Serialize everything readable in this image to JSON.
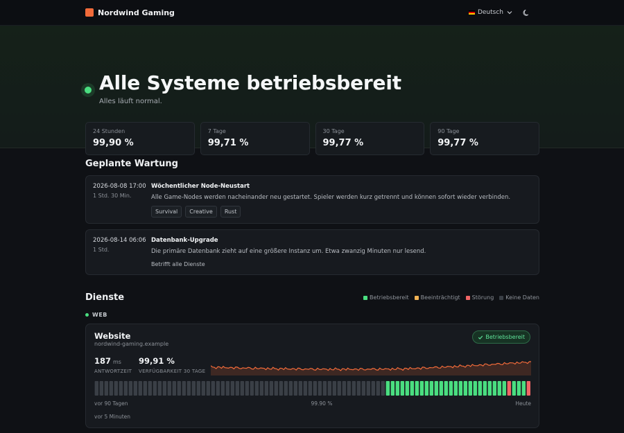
{
  "nav": {
    "brand": "Nordwind Gaming",
    "language": "Deutsch"
  },
  "hero": {
    "title": "Alle Systeme betriebsbereit",
    "subtitle": "Alles läuft normal.",
    "stats": [
      {
        "label": "24 Stunden",
        "value": "99,90 %"
      },
      {
        "label": "7 Tage",
        "value": "99,71 %"
      },
      {
        "label": "30 Tage",
        "value": "99,77 %"
      },
      {
        "label": "90 Tage",
        "value": "99,77 %"
      }
    ]
  },
  "maintenance": {
    "title": "Geplante Wartung",
    "items": [
      {
        "date": "2026-08-08 17:00",
        "duration": "1 Std. 30 Min.",
        "title": "Wöchentlicher Node-Neustart",
        "description": "Alle Game-Nodes werden nacheinander neu gestartet. Spieler werden kurz getrennt und können sofort wieder verbinden.",
        "tags": [
          "Survival",
          "Creative",
          "Rust"
        ]
      },
      {
        "date": "2026-08-14 06:06",
        "duration": "1 Std.",
        "title": "Datenbank-Upgrade",
        "description": "Die primäre Datenbank zieht auf eine größere Instanz um. Etwa zwanzig Minuten nur lesend.",
        "affects": "Betrifft alle Dienste"
      }
    ]
  },
  "services": {
    "title": "Dienste",
    "legend": [
      {
        "label": "Betriebsbereit",
        "color": "#4ade80"
      },
      {
        "label": "Beeinträchtigt",
        "color": "#f0b254"
      },
      {
        "label": "Störung",
        "color": "#f06565"
      },
      {
        "label": "Keine Daten",
        "color": "#3a3f46"
      }
    ],
    "group": "WEB",
    "service": {
      "name": "Website",
      "host": "nordwind-gaming.example",
      "status": "Betriebsbereit",
      "response_value": "187",
      "response_unit": "ms",
      "response_label": "ANTWORTZEIT",
      "uptime_value": "99,91 %",
      "uptime_label": "VERFÜGBARKEIT 30 TAGE",
      "bars_start": "vor 90 Tagen",
      "bars_mid": "99.90 %",
      "bars_end": "Heute",
      "checked": "vor 5 Minuten",
      "days": [
        "nodata",
        "nodata",
        "nodata",
        "nodata",
        "nodata",
        "nodata",
        "nodata",
        "nodata",
        "nodata",
        "nodata",
        "nodata",
        "nodata",
        "nodata",
        "nodata",
        "nodata",
        "nodata",
        "nodata",
        "nodata",
        "nodata",
        "nodata",
        "nodata",
        "nodata",
        "nodata",
        "nodata",
        "nodata",
        "nodata",
        "nodata",
        "nodata",
        "nodata",
        "nodata",
        "nodata",
        "nodata",
        "nodata",
        "nodata",
        "nodata",
        "nodata",
        "nodata",
        "nodata",
        "nodata",
        "nodata",
        "nodata",
        "nodata",
        "nodata",
        "nodata",
        "nodata",
        "nodata",
        "nodata",
        "nodata",
        "nodata",
        "nodata",
        "nodata",
        "nodata",
        "nodata",
        "nodata",
        "nodata",
        "nodata",
        "nodata",
        "nodata",
        "nodata",
        "nodata",
        "up",
        "up",
        "up",
        "up",
        "up",
        "up",
        "up",
        "up",
        "up",
        "up",
        "up",
        "up",
        "up",
        "up",
        "up",
        "up",
        "up",
        "up",
        "up",
        "up",
        "up",
        "up",
        "up",
        "up",
        "up",
        "down",
        "up",
        "up",
        "up",
        "down"
      ]
    }
  }
}
